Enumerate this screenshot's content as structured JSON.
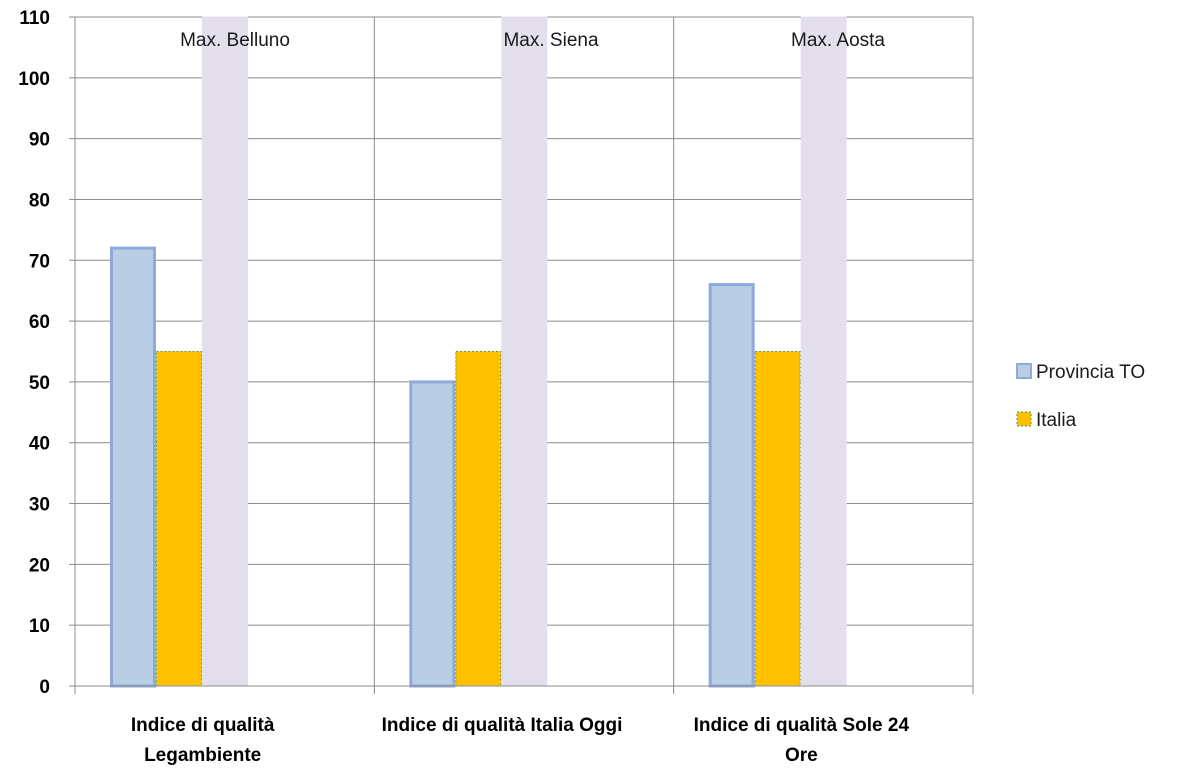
{
  "chart_data": {
    "type": "bar",
    "categories": [
      [
        "Indice di qualità",
        "Legambiente"
      ],
      [
        "Indice di qualità Italia Oggi"
      ],
      [
        "Indice di qualità Sole 24",
        "Ore"
      ]
    ],
    "series": [
      {
        "name": "Provincia TO",
        "values": [
          72,
          50,
          66
        ],
        "color": "#b9cde5",
        "stroke": "#8eaadb"
      },
      {
        "name": "Italia",
        "values": [
          55,
          55,
          55
        ],
        "color": "#ffc000",
        "stroke": "#4f9a4f"
      },
      {
        "name": "",
        "values": [
          110,
          110,
          110
        ],
        "color": "#e4dfec",
        "stroke": "#e4dfec"
      }
    ],
    "annotations": [
      "Max. Belluno",
      "Max. Siena",
      "Max. Aosta"
    ],
    "ylim": [
      0,
      110
    ],
    "yticks": [
      0,
      10,
      20,
      30,
      40,
      50,
      60,
      70,
      80,
      90,
      100,
      110
    ],
    "grid": true,
    "legend_position": "right"
  }
}
